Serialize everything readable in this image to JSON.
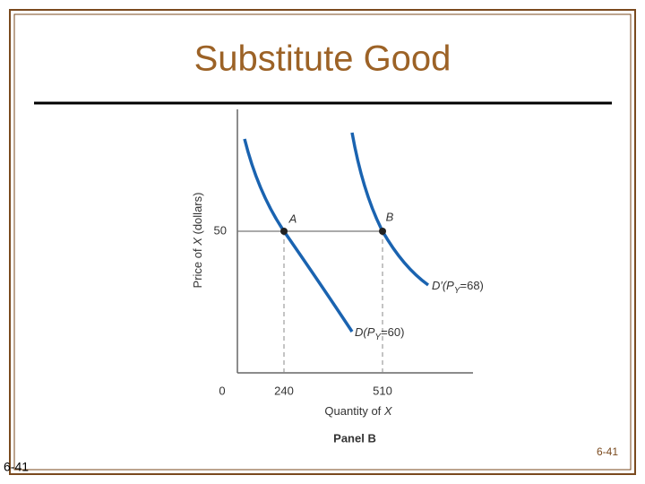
{
  "slide": {
    "title": "Substitute Good",
    "page_number_right": "6-41",
    "page_number_left": "6-41"
  },
  "diagram": {
    "y_axis_label": {
      "text": "Price of ",
      "var": "X",
      "unit": " (dollars)"
    },
    "x_axis_label": {
      "text": "Quantity of ",
      "var": "X"
    },
    "y_ticks": [
      "50"
    ],
    "x_ticks": [
      "0",
      "240",
      "510"
    ],
    "points": [
      "A",
      "B"
    ],
    "curves": [
      {
        "main": "D(P",
        "sub": "Y",
        "rest": "=60)"
      },
      {
        "main": "D′(P",
        "sub": "Y",
        "rest": "=68)"
      }
    ],
    "panel_label": "Panel B"
  }
}
